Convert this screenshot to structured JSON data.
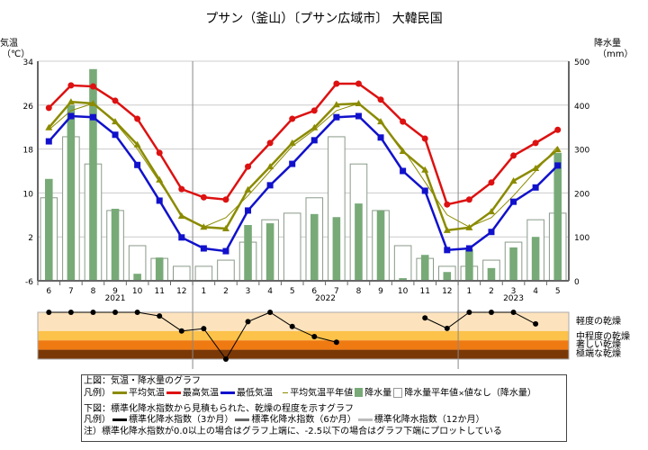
{
  "chart_data": {
    "type": "bar+line",
    "title": "プサン（釜山）〔プサン広域市〕 大韓民国",
    "ylabel_left": "気温\n（℃）",
    "ylabel_right": "降水量\n（mm）",
    "ylim_left": [
      -6,
      34
    ],
    "yticks_left": [
      -6,
      2,
      10,
      18,
      26,
      34
    ],
    "ylim_right": [
      0,
      500
    ],
    "yticks_right": [
      0,
      100,
      200,
      300,
      400,
      500
    ],
    "grid": true,
    "categories": [
      "6",
      "7",
      "8",
      "9",
      "10",
      "11",
      "12",
      "1",
      "2",
      "3",
      "4",
      "5",
      "6",
      "7",
      "8",
      "9",
      "10",
      "11",
      "12",
      "1",
      "2",
      "3",
      "4",
      "5"
    ],
    "years": [
      {
        "label": "2021",
        "from": 0,
        "to": 6
      },
      {
        "label": "2022",
        "from": 7,
        "to": 18
      },
      {
        "label": "2023",
        "from": 19,
        "to": 23
      }
    ],
    "series": [
      {
        "name": "最高気温",
        "color": "#dd1111",
        "marker": "circle",
        "values": [
          25.5,
          29.6,
          29.4,
          26.8,
          23.5,
          17.3,
          10.7,
          9.2,
          8.8,
          14.8,
          19.1,
          23.5,
          25.0,
          29.9,
          29.9,
          27.0,
          23.0,
          19.9,
          7.9,
          8.8,
          11.9,
          16.8,
          19.1,
          21.5
        ]
      },
      {
        "name": "平均気温",
        "color": "#8b8b00",
        "marker": "triangle",
        "values": [
          21.9,
          26.6,
          26.3,
          23.0,
          18.8,
          12.4,
          5.8,
          3.8,
          3.5,
          10.6,
          14.8,
          19.1,
          21.9,
          26.1,
          26.3,
          23.0,
          17.6,
          14.2,
          3.2,
          3.7,
          6.6,
          12.2,
          14.5,
          17.9
        ]
      },
      {
        "name": "平均気温平年値",
        "color": "#8b8b00",
        "marker": "none",
        "values": [
          21.5,
          25.0,
          26.3,
          22.8,
          18.0,
          12.0,
          6.0,
          3.8,
          5.5,
          9.5,
          14.0,
          18.5,
          21.5,
          25.0,
          26.3,
          22.8,
          18.0,
          12.0,
          6.0,
          3.8,
          5.5,
          9.5,
          14.0,
          18.5
        ]
      },
      {
        "name": "最低気温",
        "color": "#1111cc",
        "marker": "square",
        "values": [
          19.4,
          24.0,
          23.8,
          20.6,
          15.1,
          8.6,
          1.9,
          -0.1,
          -0.6,
          6.8,
          11.4,
          15.3,
          19.6,
          23.8,
          24.0,
          20.1,
          14.0,
          10.4,
          -0.4,
          -0.1,
          2.9,
          8.4,
          11.0,
          15.0
        ]
      },
      {
        "name": "降水量",
        "color": "#78aa78",
        "type": "bar",
        "values": [
          232,
          400,
          482,
          164,
          16,
          53,
          2,
          0,
          0,
          127,
          131,
          2,
          152,
          145,
          176,
          160,
          6,
          59,
          20,
          72,
          29,
          76,
          100,
          291
        ]
      },
      {
        "name": "降水量平年値",
        "color": "#ffffff",
        "type": "bar",
        "values": [
          189,
          328,
          266,
          160,
          80,
          51,
          33,
          33,
          47,
          88,
          139,
          154,
          189,
          328,
          266,
          160,
          80,
          51,
          33,
          33,
          47,
          88,
          139,
          154
        ]
      }
    ],
    "drought": {
      "ylim": [
        -2.5,
        0
      ],
      "bands": [
        {
          "label": "軽度の乾燥",
          "color": "#fde3bd"
        },
        {
          "label": "中程度の乾燥",
          "color": "#fcc24a"
        },
        {
          "label": "著しい乾燥",
          "color": "#ef7a12"
        },
        {
          "label": "極端な乾燥",
          "color": "#7a3806"
        }
      ],
      "spi3": [
        0,
        0,
        0,
        0,
        0,
        -0.2,
        -1.0,
        -0.87,
        -2.5,
        -0.5,
        0,
        -0.76,
        -1.3,
        -1.6,
        null,
        null,
        null,
        -0.3,
        -0.86,
        0,
        0,
        0,
        -0.62,
        null
      ]
    }
  },
  "legend": {
    "top_title": "上図：気温・降水量のグラフ",
    "prefix": "凡例）",
    "mean": "平均気温",
    "max": "最高気温",
    "min": "最低気温",
    "normal_temp": "平均気温平年値",
    "precip": "降水量",
    "normal_precip": "降水量平年値",
    "x_mark": "×",
    "no_value": "値なし（降水量）",
    "bottom_title": "下図：標準化降水指数から見積もられた、乾燥の程度を示すグラフ",
    "spi3": "標準化降水指数（3か月）",
    "spi6": "標準化降水指数（6か月）",
    "spi12": "標準化降水指数（12か月）",
    "note": "注）標準化降水指数が0.0以上の場合はグラフ上端に、-2.5以下の場合はグラフ下端にプロットしている"
  }
}
